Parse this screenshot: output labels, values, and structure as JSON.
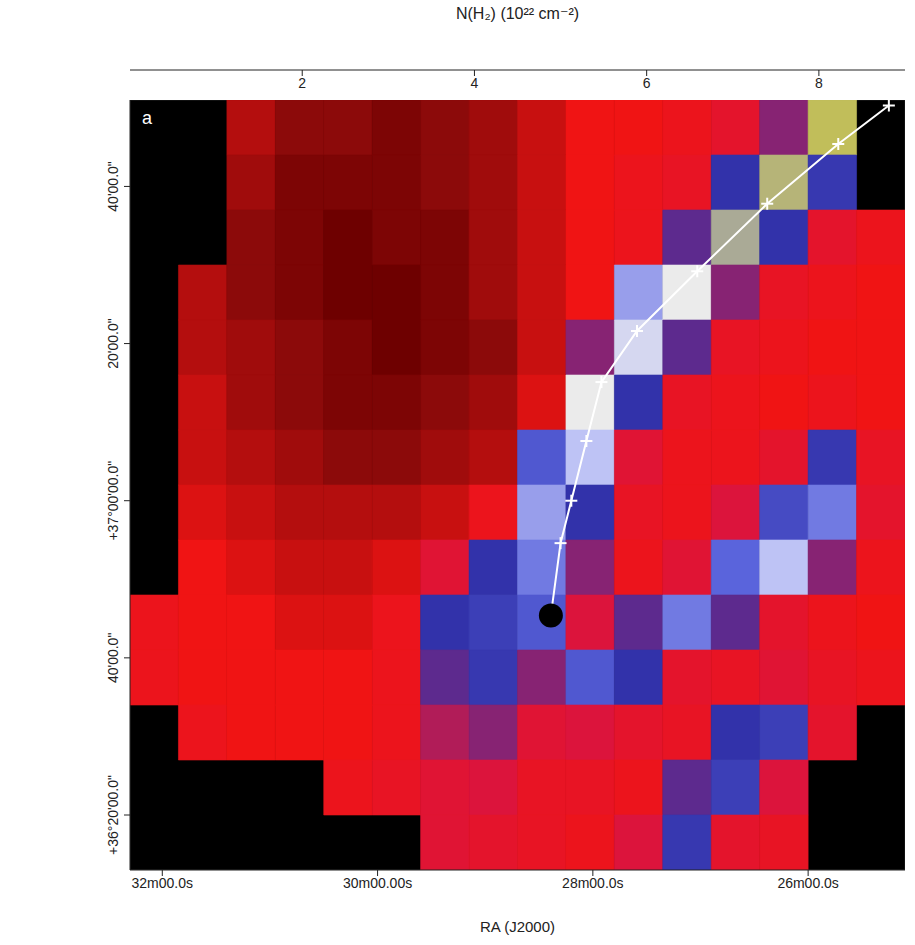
{
  "chart_data": {
    "type": "heatmap",
    "panel": "a",
    "x_label": "RA (J2000)",
    "xlim": [
      32.3,
      25.1
    ],
    "xticks": [
      {
        "value": 32,
        "label": "32m00.0s"
      },
      {
        "value": 30,
        "label": "30m00.00s"
      },
      {
        "value": 28,
        "label": "28m00.0s"
      },
      {
        "value": 26,
        "label": "26m00.0s"
      }
    ],
    "ylim": [
      13,
      111
    ],
    "yticks": [
      {
        "value": 100,
        "label": "40'00.0\""
      },
      {
        "value": 80,
        "label": "20'00.0\""
      },
      {
        "value": 60,
        "label": "+37°00'00.0\""
      },
      {
        "value": 40,
        "label": "40'00.0\""
      },
      {
        "value": 20,
        "label": "+36°20'00.0\""
      }
    ],
    "x_edges": [
      32.3,
      31.85,
      31.4,
      30.95,
      30.5,
      30.05,
      29.6,
      29.15,
      28.7,
      28.25,
      27.8,
      27.35,
      26.9,
      26.45,
      26.0,
      25.55,
      25.1
    ],
    "y_edges": [
      111,
      104,
      97,
      90,
      83,
      76,
      69,
      62,
      55,
      48,
      41,
      34,
      27,
      20,
      13
    ],
    "cells": [
      [
        null,
        null,
        1.2,
        1.0,
        1.0,
        0.9,
        1.0,
        1.1,
        1.3,
        1.5,
        1.5,
        1.6,
        1.8,
        2.2,
        7.5,
        null
      ],
      [
        null,
        null,
        1.1,
        0.9,
        0.9,
        0.9,
        1.0,
        1.1,
        1.3,
        1.5,
        1.6,
        1.7,
        2.4,
        7.0,
        2.5,
        null
      ],
      [
        null,
        null,
        1.0,
        0.9,
        0.8,
        0.9,
        0.9,
        1.1,
        1.3,
        1.5,
        1.6,
        2.3,
        6.5,
        2.4,
        1.8,
        1.6
      ],
      [
        null,
        1.2,
        1.0,
        0.9,
        0.8,
        0.8,
        0.9,
        1.1,
        1.3,
        1.5,
        4.0,
        5.5,
        2.2,
        1.7,
        1.6,
        1.5
      ],
      [
        null,
        1.2,
        1.1,
        1.0,
        0.9,
        0.8,
        0.9,
        1.0,
        1.3,
        2.2,
        5.0,
        2.3,
        1.7,
        1.6,
        1.5,
        1.5
      ],
      [
        null,
        1.3,
        1.1,
        1.0,
        0.9,
        0.9,
        1.0,
        1.1,
        1.4,
        5.5,
        2.4,
        1.7,
        1.6,
        1.5,
        1.6,
        1.5
      ],
      [
        null,
        1.3,
        1.2,
        1.1,
        1.0,
        1.0,
        1.1,
        1.2,
        3.0,
        4.5,
        1.9,
        1.6,
        1.6,
        1.8,
        2.5,
        1.7
      ],
      [
        null,
        1.4,
        1.3,
        1.2,
        1.2,
        1.2,
        1.3,
        1.6,
        4.0,
        2.4,
        1.7,
        1.6,
        2.0,
        2.8,
        3.5,
        1.8
      ],
      [
        null,
        1.5,
        1.4,
        1.3,
        1.3,
        1.4,
        1.9,
        2.4,
        3.5,
        2.2,
        1.6,
        1.9,
        3.2,
        4.5,
        2.2,
        1.6
      ],
      [
        1.6,
        1.5,
        1.5,
        1.4,
        1.4,
        1.6,
        2.4,
        2.6,
        3.0,
        2.0,
        2.3,
        3.5,
        2.3,
        1.8,
        1.6,
        1.5
      ],
      [
        1.6,
        1.5,
        1.5,
        1.5,
        1.5,
        1.6,
        2.3,
        2.5,
        2.2,
        3.0,
        2.4,
        1.8,
        1.7,
        1.9,
        1.7,
        1.6
      ],
      [
        null,
        1.6,
        1.5,
        1.5,
        1.5,
        1.6,
        2.1,
        2.2,
        1.9,
        2.0,
        1.8,
        1.7,
        2.4,
        2.6,
        1.8,
        null
      ],
      [
        null,
        null,
        null,
        null,
        1.6,
        1.7,
        1.9,
        2.0,
        1.7,
        1.7,
        1.6,
        2.3,
        2.6,
        2.0,
        null,
        null
      ],
      [
        null,
        null,
        null,
        null,
        null,
        null,
        1.9,
        1.8,
        1.7,
        1.6,
        2.0,
        2.5,
        1.8,
        1.7,
        null,
        null
      ]
    ],
    "colorbar": {
      "label": "N(H₂) (10²² cm⁻²)",
      "range": [
        0,
        9
      ],
      "ticks": [
        2,
        4,
        6,
        8
      ]
    },
    "spine": {
      "x": [
        28.39,
        28.3,
        28.2,
        28.06,
        27.92,
        27.59,
        27.03,
        26.38,
        25.72,
        25.25
      ],
      "y": [
        45.4,
        54.6,
        60.0,
        67.6,
        75.1,
        81.6,
        89.2,
        97.8,
        105.4,
        110.3
      ],
      "color": "#ffffff",
      "marker": "cross"
    },
    "source": {
      "x": 28.39,
      "y": 45.4,
      "color": "#000000",
      "marker": "circle"
    }
  }
}
